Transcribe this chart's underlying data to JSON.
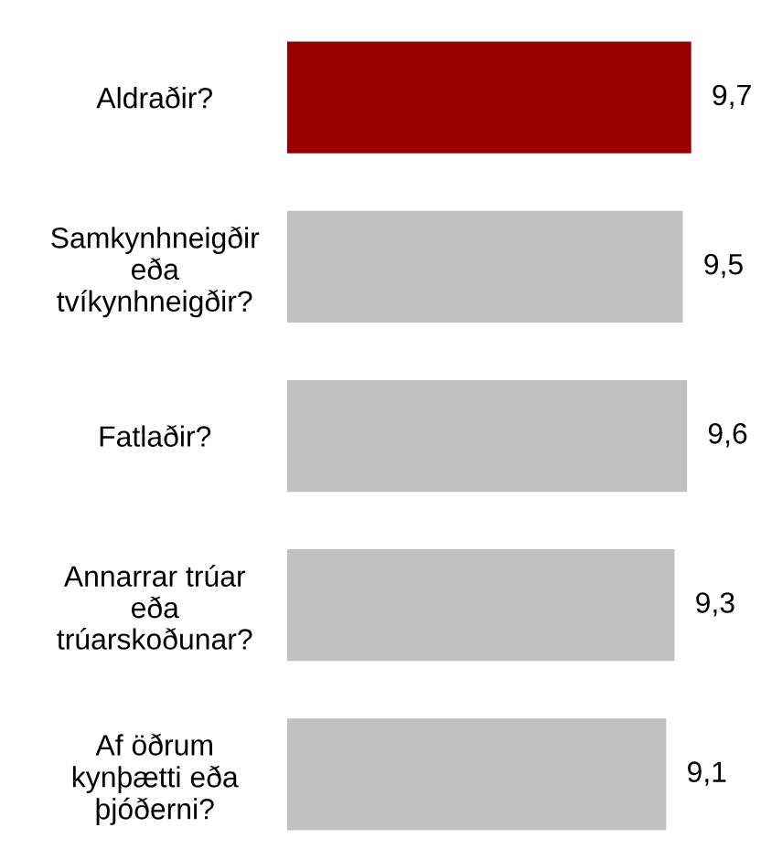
{
  "chart_data": {
    "type": "bar",
    "orientation": "horizontal",
    "categories": [
      "Aldraðir?",
      "Samkynhneigðir\neða\ntvíkynhneigðir?",
      "Fatlaðir?",
      "Annarrar trúar\neða\ntrúarskoðunar?",
      "Af öðrum\nkynþætti eða\nþjóðerni?"
    ],
    "values": [
      9.7,
      9.5,
      9.6,
      9.3,
      9.1
    ],
    "colors": [
      "#990000",
      "#c0c0c0",
      "#c0c0c0",
      "#c0c0c0",
      "#c0c0c0"
    ],
    "value_labels": [
      "9,7",
      "9,5",
      "9,6",
      "9,3",
      "9,1"
    ],
    "grid": false,
    "legend": false
  }
}
